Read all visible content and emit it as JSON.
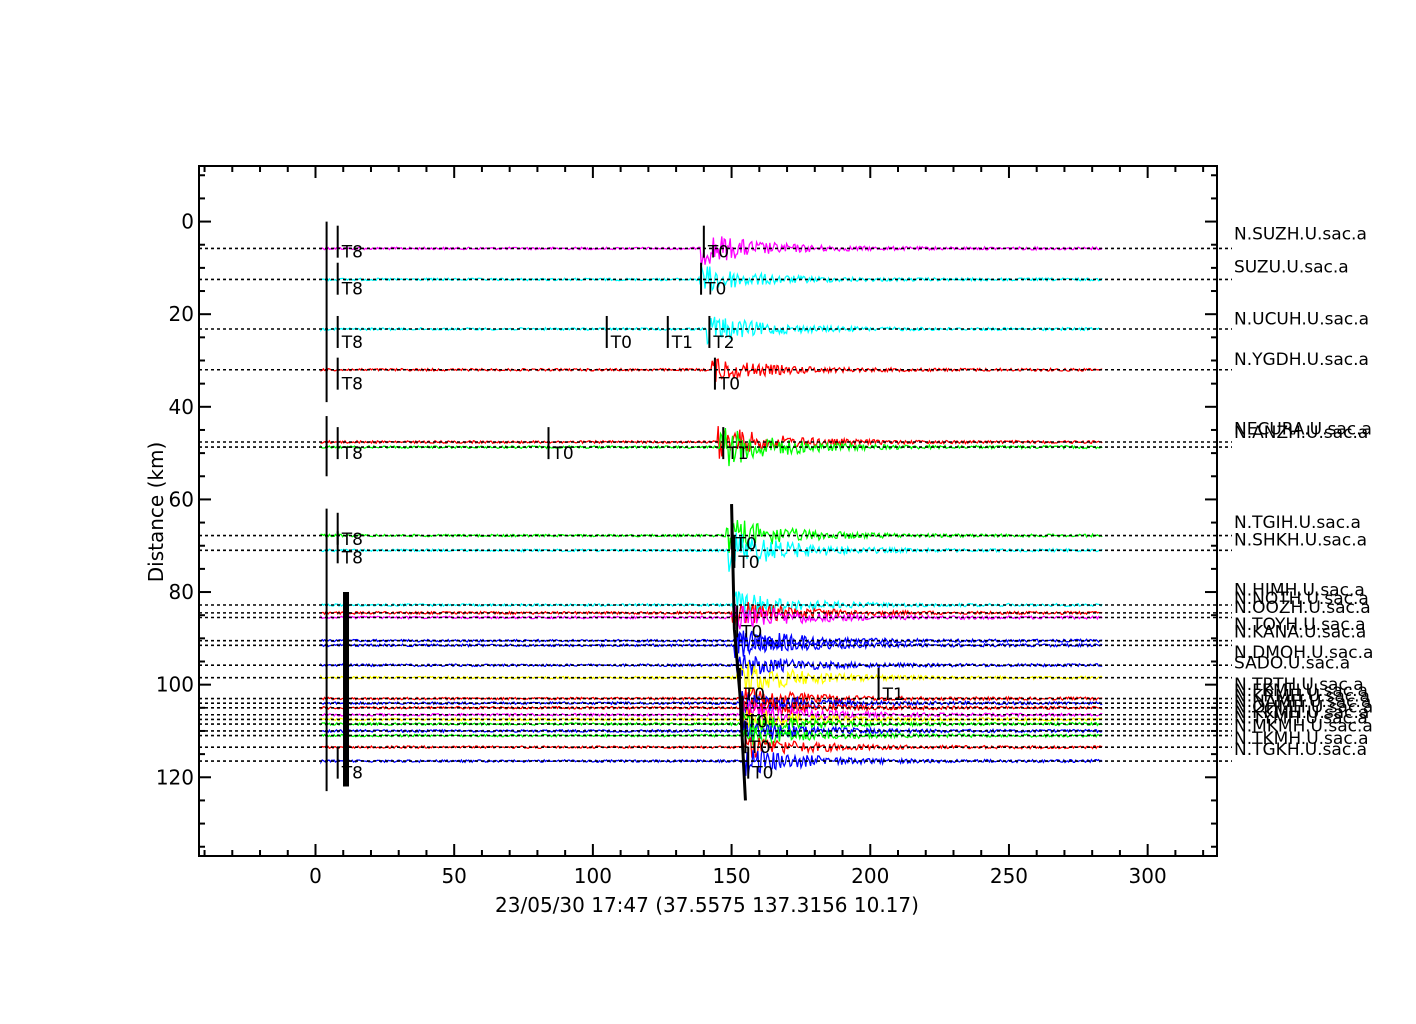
{
  "chart_data": {
    "type": "line",
    "title": "23/05/30  17:47  (37.5575  137.3156  10.17)",
    "xlabel": "",
    "ylabel": "Distance (km)",
    "xlim": [
      -42,
      325
    ],
    "ylim": [
      137,
      -12
    ],
    "x_ticks": [
      0,
      50,
      100,
      150,
      200,
      250,
      300
    ],
    "y_ticks": [
      0,
      20,
      40,
      60,
      80,
      100,
      120
    ],
    "grid": false,
    "colors": {
      "magenta": "#ff00ff",
      "cyan": "#00ffff",
      "red": "#ff0000",
      "green": "#00ff00",
      "blue": "#0000ff",
      "yellow": "#ffff00",
      "axis": "#000000"
    },
    "series": [
      {
        "name": "N.SUZH.U.sac.a",
        "distance": 5.8,
        "color": "magenta",
        "onset": 139,
        "amp": 7,
        "labeled_distance": 2.6
      },
      {
        "name": "SUZU.U.sac.a",
        "distance": 12.5,
        "color": "cyan",
        "onset": 138,
        "amp": 6,
        "labeled_distance": 9.7
      },
      {
        "name": "N.UCUH.U.sac.a",
        "distance": 23.2,
        "color": "cyan",
        "onset": 141,
        "amp": 6,
        "labeled_distance": 20.9
      },
      {
        "name": "N.YGDH.U.sac.a",
        "distance": 32.0,
        "color": "red",
        "onset": 143,
        "amp": 5,
        "labeled_distance": 29.7
      },
      {
        "name": "NECURA.U.sac.a",
        "distance": 47.6,
        "color": "red",
        "onset": 145,
        "amp": 7,
        "labeled_distance": 44.7
      },
      {
        "name": "N.ANZH.U.sac.a",
        "distance": 48.7,
        "color": "green",
        "onset": 146,
        "amp": 9,
        "labeled_distance": 45.4
      },
      {
        "name": "N.TGIH.U.sac.a",
        "distance": 67.8,
        "color": "green",
        "onset": 148,
        "amp": 8,
        "labeled_distance": 64.9
      },
      {
        "name": "N.SHKH.U.sac.a",
        "distance": 71.0,
        "color": "cyan",
        "onset": 149,
        "amp": 9,
        "labeled_distance": 68.7
      },
      {
        "name": "N.HIMH.U.sac.a",
        "distance": 82.8,
        "color": "cyan",
        "onset": 150,
        "amp": 6,
        "labeled_distance": 79.5
      },
      {
        "name": "N.NOTH.U.sac.a",
        "distance": 84.5,
        "color": "red",
        "onset": 150,
        "amp": 6,
        "labeled_distance": 81.3
      },
      {
        "name": "N.OOZH.U.sac.a",
        "distance": 85.5,
        "color": "magenta",
        "onset": 150,
        "amp": 7,
        "labeled_distance": 83.2
      },
      {
        "name": "N.TOYH.U.sac.a",
        "distance": 90.5,
        "color": "blue",
        "onset": 151,
        "amp": 6,
        "labeled_distance": 86.9
      },
      {
        "name": "N.KANA.U.sac.a",
        "distance": 91.5,
        "color": "blue",
        "onset": 151,
        "amp": 5,
        "labeled_distance": 88.5
      },
      {
        "name": "N.DMOH.U.sac.a",
        "distance": 95.8,
        "color": "blue",
        "onset": 152,
        "amp": 5,
        "labeled_distance": 92.9
      },
      {
        "name": "SADO.U.sac.a",
        "distance": 98.5,
        "color": "yellow",
        "onset": 152,
        "amp": 8,
        "labeled_distance": 95.2
      },
      {
        "name": "N.TRTH.U.sac.a",
        "distance": 103.0,
        "color": "red",
        "onset": 153,
        "amp": 5,
        "labeled_distance": 99.9
      },
      {
        "name": "N.FKMH.U.sac.a",
        "distance": 104.0,
        "color": "blue",
        "onset": 153,
        "amp": 5,
        "labeled_distance": 101.2
      },
      {
        "name": "N.KRMH.U.sac.a",
        "distance": 105.0,
        "color": "red",
        "onset": 153,
        "amp": 5,
        "labeled_distance": 102.3
      },
      {
        "name": "N.NAMH.U.sac.a",
        "distance": 106.5,
        "color": "magenta",
        "onset": 153,
        "amp": 6,
        "labeled_distance": 103.5
      },
      {
        "name": "N.OHMH.U.sac.a",
        "distance": 107.5,
        "color": "yellow",
        "onset": 154,
        "amp": 5,
        "labeled_distance": 104.7
      },
      {
        "name": "N.KKMH.U.sac.a",
        "distance": 108.5,
        "color": "green",
        "onset": 154,
        "amp": 5,
        "labeled_distance": 105.9
      },
      {
        "name": "N.TYMH.U.sac.a",
        "distance": 110.0,
        "color": "blue",
        "onset": 154,
        "amp": 5,
        "labeled_distance": 107.1
      },
      {
        "name": "N.MKMH.U.sac.a",
        "distance": 111.0,
        "color": "green",
        "onset": 154,
        "amp": 5,
        "labeled_distance": 108.8
      },
      {
        "name": "N.TKMH.U.sac.a",
        "distance": 113.5,
        "color": "red",
        "onset": 155,
        "amp": 5,
        "labeled_distance": 111.5
      },
      {
        "name": "N.TGKH.U.sac.a",
        "distance": 116.5,
        "color": "blue",
        "onset": 155,
        "amp": 6,
        "labeled_distance": 113.9
      }
    ],
    "pick_markers": [
      {
        "label": "T8",
        "x": 8,
        "distance": 6.5
      },
      {
        "label": "T8",
        "x": 8,
        "distance": 14.5
      },
      {
        "label": "T8",
        "x": 8,
        "distance": 26.0
      },
      {
        "label": "T8",
        "x": 8,
        "distance": 35.0
      },
      {
        "label": "T8",
        "x": 8,
        "distance": 50.0
      },
      {
        "label": "T8",
        "x": 8,
        "distance": 68.5
      },
      {
        "label": "T8",
        "x": 8,
        "distance": 72.5
      },
      {
        "label": "T8",
        "x": 8,
        "distance": 119.0
      },
      {
        "label": "T0",
        "x": 140,
        "distance": 6.5
      },
      {
        "label": "T0",
        "x": 139,
        "distance": 14.5
      },
      {
        "label": "T0",
        "x": 105,
        "distance": 26.0
      },
      {
        "label": "T1",
        "x": 127,
        "distance": 26.0
      },
      {
        "label": "T2",
        "x": 142,
        "distance": 26.0
      },
      {
        "label": "T0",
        "x": 144,
        "distance": 35.0
      },
      {
        "label": "T0",
        "x": 84,
        "distance": 50.0
      },
      {
        "label": "T1",
        "x": 147,
        "distance": 50.0
      },
      {
        "label": "T0",
        "x": 150,
        "distance": 69.5
      },
      {
        "label": "T0",
        "x": 151,
        "distance": 73.5
      },
      {
        "label": "T0",
        "x": 152,
        "distance": 88.5
      },
      {
        "label": "T0",
        "x": 153,
        "distance": 102.0
      },
      {
        "label": "T1",
        "x": 203,
        "distance": 102.0
      },
      {
        "label": "T0",
        "x": 154,
        "distance": 108.0
      },
      {
        "label": "T0",
        "x": 155,
        "distance": 113.5
      },
      {
        "label": "T0",
        "x": 156,
        "distance": 119.0
      }
    ],
    "group_bars": [
      {
        "x": 4,
        "from": 0,
        "to": 39
      },
      {
        "x": 4,
        "from": 42,
        "to": 55
      },
      {
        "x": 4,
        "from": 62,
        "to": 123
      }
    ]
  }
}
